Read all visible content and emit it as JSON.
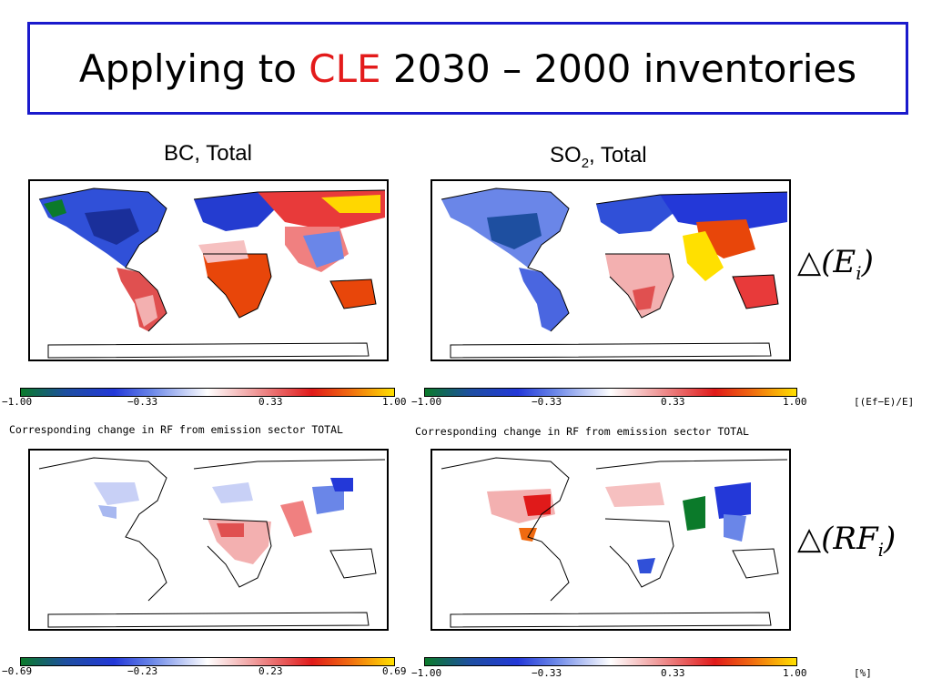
{
  "slide": {
    "title_part1": "Applying to ",
    "title_highlight": "CLE",
    "title_part2": " 2030 – 2000 inventories",
    "highlight_color": "#e31b1b",
    "border_color": "#1a1acc"
  },
  "columns": {
    "left_header": "BC, Total",
    "right_header_main": "SO",
    "right_header_sub": "2",
    "right_header_rest": ", Total"
  },
  "row_labels": {
    "emissions_tri": "△",
    "emissions_open": "(",
    "emissions_var": "E",
    "emissions_sub": "i",
    "emissions_close": ")",
    "rf_tri": "△",
    "rf_open": "(",
    "rf_var": "RF",
    "rf_sub": "i",
    "rf_close": ")"
  },
  "colorbars": {
    "top_left_ticks": [
      "−1.00",
      "−0.33",
      "0.33",
      "1.00"
    ],
    "top_right_ticks": [
      "−1.00",
      "−0.33",
      "0.33",
      "1.00"
    ],
    "top_unit": "[(Ef−E)/E]",
    "bottom_left_ticks": [
      "−0.69",
      "−0.23",
      "0.23",
      "0.69"
    ],
    "bottom_right_ticks": [
      "−1.00",
      "−0.33",
      "0.33",
      "1.00"
    ],
    "bottom_unit": "[%]",
    "gradient_colors": [
      "#0b7a2a",
      "#2338d8",
      "#ffffff",
      "#e01a1a",
      "#ffe000"
    ]
  },
  "captions": {
    "left": "Corresponding change in RF from emission sector TOTAL",
    "right": "Corresponding change in RF from emission sector TOTAL"
  }
}
